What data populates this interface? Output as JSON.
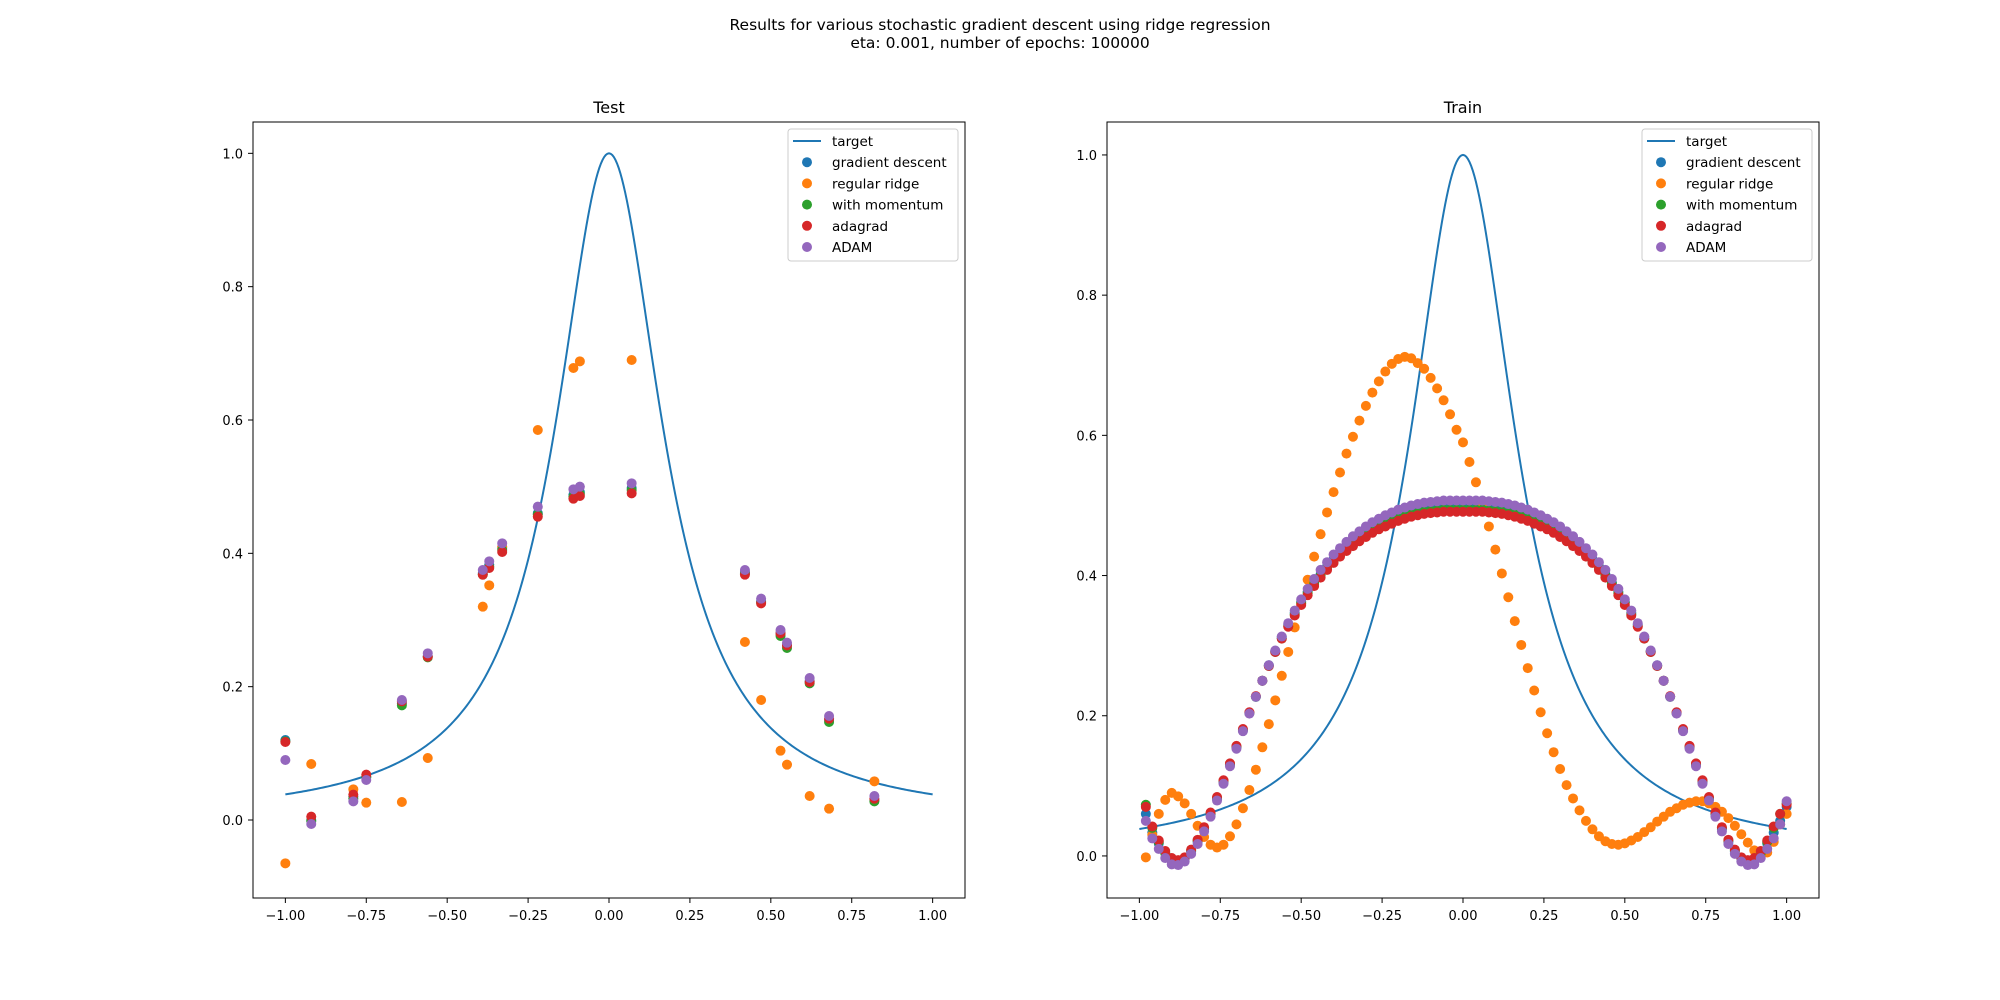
{
  "figure": {
    "suptitle_line1": "Results for various stochastic gradient descent using ridge regression",
    "suptitle_line2": "eta: 0.001, number of epochs: 100000"
  },
  "colors": {
    "target": "#1f77b4",
    "gradient descent": "#1f77b4",
    "regular ridge": "#ff7f0e",
    "with momentum": "#2ca02c",
    "adagrad": "#d62728",
    "ADAM": "#9467bd"
  },
  "chart_data": [
    {
      "type": "scatter",
      "title": "Test",
      "xlabel": "",
      "ylabel": "",
      "xlim": [
        -1.1,
        1.1
      ],
      "ylim": [
        -0.117,
        1.047
      ],
      "xticks": [
        -1.0,
        -0.75,
        -0.5,
        -0.25,
        0.0,
        0.25,
        0.5,
        0.75,
        1.0
      ],
      "xtick_labels": [
        "−1.00",
        "−0.75",
        "−0.50",
        "−0.25",
        "0.00",
        "0.25",
        "0.50",
        "0.75",
        "1.00"
      ],
      "yticks": [
        0.0,
        0.2,
        0.4,
        0.6,
        0.8,
        1.0
      ],
      "ytick_labels": [
        "0.0",
        "0.2",
        "0.4",
        "0.6",
        "0.8",
        "1.0"
      ],
      "grid": false,
      "legend": "top-right",
      "legend_entries": [
        "target",
        "gradient descent",
        "regular ridge",
        "with momentum",
        "adagrad",
        "ADAM"
      ],
      "line": {
        "name": "target",
        "function": "1/(1+25x^2)",
        "x_range": [
          -1.0,
          1.0
        ]
      },
      "x": [
        -1.0,
        -0.92,
        -0.79,
        -0.75,
        -0.64,
        -0.56,
        -0.39,
        -0.37,
        -0.33,
        -0.22,
        -0.11,
        -0.09,
        0.07,
        0.42,
        0.47,
        0.53,
        0.55,
        0.62,
        0.68,
        0.82
      ],
      "series": [
        {
          "name": "gradient descent",
          "values": [
            0.12,
            0.0,
            0.035,
            0.065,
            0.175,
            0.246,
            0.37,
            0.383,
            0.408,
            0.46,
            0.488,
            0.492,
            0.498,
            0.372,
            0.328,
            0.28,
            0.262,
            0.208,
            0.15,
            0.03
          ]
        },
        {
          "name": "regular ridge",
          "values": [
            -0.065,
            0.084,
            0.046,
            0.026,
            0.027,
            0.093,
            0.32,
            0.352,
            0.41,
            0.585,
            0.678,
            0.688,
            0.69,
            0.267,
            0.18,
            0.104,
            0.083,
            0.036,
            0.017,
            0.058
          ]
        },
        {
          "name": "with momentum",
          "values": [
            0.118,
            -0.002,
            0.032,
            0.064,
            0.172,
            0.244,
            0.368,
            0.38,
            0.405,
            0.458,
            0.485,
            0.489,
            0.495,
            0.37,
            0.326,
            0.276,
            0.258,
            0.205,
            0.147,
            0.028
          ]
        },
        {
          "name": "adagrad",
          "values": [
            0.117,
            0.005,
            0.038,
            0.068,
            0.178,
            0.245,
            0.368,
            0.378,
            0.402,
            0.455,
            0.482,
            0.486,
            0.49,
            0.368,
            0.325,
            0.28,
            0.262,
            0.207,
            0.152,
            0.032
          ]
        },
        {
          "name": "ADAM",
          "values": [
            0.09,
            -0.006,
            0.028,
            0.06,
            0.18,
            0.25,
            0.375,
            0.388,
            0.415,
            0.47,
            0.496,
            0.5,
            0.505,
            0.375,
            0.332,
            0.285,
            0.266,
            0.213,
            0.156,
            0.036
          ]
        }
      ]
    },
    {
      "type": "scatter",
      "title": "Train",
      "xlabel": "",
      "ylabel": "",
      "xlim": [
        -1.1,
        1.1
      ],
      "ylim": [
        -0.06,
        1.047
      ],
      "xticks": [
        -1.0,
        -0.75,
        -0.5,
        -0.25,
        0.0,
        0.25,
        0.5,
        0.75,
        1.0
      ],
      "xtick_labels": [
        "−1.00",
        "−0.75",
        "−0.50",
        "−0.25",
        "0.00",
        "0.25",
        "0.50",
        "0.75",
        "1.00"
      ],
      "yticks": [
        0.0,
        0.2,
        0.4,
        0.6,
        0.8,
        1.0
      ],
      "ytick_labels": [
        "0.0",
        "0.2",
        "0.4",
        "0.6",
        "0.8",
        "1.0"
      ],
      "grid": false,
      "legend": "top-right",
      "legend_entries": [
        "target",
        "gradient descent",
        "regular ridge",
        "with momentum",
        "adagrad",
        "ADAM"
      ],
      "line": {
        "name": "target",
        "function": "1/(1+25x^2)",
        "x_range": [
          -1.0,
          1.0
        ]
      },
      "x": [
        -0.98,
        -0.96,
        -0.94,
        -0.92,
        -0.9,
        -0.88,
        -0.86,
        -0.84,
        -0.82,
        -0.8,
        -0.78,
        -0.76,
        -0.74,
        -0.72,
        -0.7,
        -0.68,
        -0.66,
        -0.64,
        -0.62,
        -0.6,
        -0.58,
        -0.56,
        -0.54,
        -0.52,
        -0.5,
        -0.48,
        -0.46,
        -0.44,
        -0.42,
        -0.4,
        -0.38,
        -0.36,
        -0.34,
        -0.32,
        -0.3,
        -0.28,
        -0.26,
        -0.24,
        -0.22,
        -0.2,
        -0.18,
        -0.16,
        -0.14,
        -0.12,
        -0.1,
        -0.08,
        -0.06,
        -0.04,
        -0.02,
        0.0,
        0.02,
        0.04,
        0.06,
        0.08,
        0.1,
        0.12,
        0.14,
        0.16,
        0.18,
        0.2,
        0.22,
        0.24,
        0.26,
        0.28,
        0.3,
        0.32,
        0.34,
        0.36,
        0.38,
        0.4,
        0.42,
        0.44,
        0.46,
        0.48,
        0.5,
        0.52,
        0.54,
        0.56,
        0.58,
        0.6,
        0.62,
        0.64,
        0.66,
        0.68,
        0.7,
        0.72,
        0.74,
        0.76,
        0.78,
        0.8,
        0.82,
        0.84,
        0.86,
        0.88,
        0.9,
        0.92,
        0.94,
        0.96,
        0.98,
        1.0
      ],
      "series": [
        {
          "name": "gradient descent",
          "values": [
            0.06,
            0.033,
            0.018,
            0.004,
            -0.007,
            -0.009,
            -0.004,
            0.006,
            0.02,
            0.038,
            0.059,
            0.081,
            0.105,
            0.13,
            0.155,
            0.179,
            0.204,
            0.227,
            0.25,
            0.272,
            0.292,
            0.312,
            0.33,
            0.347,
            0.363,
            0.377,
            0.39,
            0.402,
            0.413,
            0.423,
            0.432,
            0.44,
            0.447,
            0.454,
            0.46,
            0.466,
            0.471,
            0.476,
            0.48,
            0.484,
            0.487,
            0.49,
            0.492,
            0.494,
            0.495,
            0.496,
            0.497,
            0.497,
            0.497,
            0.497,
            0.497,
            0.497,
            0.497,
            0.496,
            0.495,
            0.494,
            0.492,
            0.49,
            0.487,
            0.484,
            0.48,
            0.476,
            0.471,
            0.466,
            0.46,
            0.454,
            0.447,
            0.44,
            0.432,
            0.423,
            0.413,
            0.402,
            0.39,
            0.377,
            0.363,
            0.347,
            0.33,
            0.312,
            0.292,
            0.272,
            0.25,
            0.227,
            0.204,
            0.179,
            0.155,
            0.13,
            0.105,
            0.081,
            0.059,
            0.038,
            0.02,
            0.006,
            -0.004,
            -0.009,
            -0.007,
            0.004,
            0.018,
            0.033,
            0.05,
            0.07
          ]
        },
        {
          "name": "regular ridge",
          "values": [
            -0.002,
            0.03,
            0.06,
            0.08,
            0.09,
            0.085,
            0.075,
            0.06,
            0.043,
            0.027,
            0.016,
            0.012,
            0.016,
            0.028,
            0.045,
            0.068,
            0.094,
            0.123,
            0.155,
            0.188,
            0.222,
            0.257,
            0.291,
            0.326,
            0.36,
            0.394,
            0.427,
            0.459,
            0.49,
            0.519,
            0.547,
            0.574,
            0.598,
            0.621,
            0.642,
            0.661,
            0.677,
            0.691,
            0.702,
            0.709,
            0.712,
            0.71,
            0.703,
            0.695,
            0.682,
            0.667,
            0.65,
            0.63,
            0.608,
            0.59,
            0.562,
            0.533,
            0.502,
            0.47,
            0.437,
            0.403,
            0.369,
            0.335,
            0.301,
            0.268,
            0.236,
            0.205,
            0.175,
            0.148,
            0.124,
            0.101,
            0.082,
            0.065,
            0.05,
            0.038,
            0.028,
            0.021,
            0.017,
            0.016,
            0.018,
            0.022,
            0.027,
            0.034,
            0.041,
            0.049,
            0.056,
            0.063,
            0.068,
            0.073,
            0.076,
            0.078,
            0.078,
            0.075,
            0.07,
            0.063,
            0.054,
            0.043,
            0.031,
            0.019,
            0.008,
            0.002,
            0.005,
            0.02,
            0.045,
            0.06
          ]
        },
        {
          "name": "with momentum",
          "values": [
            0.073,
            0.04,
            0.02,
            0.004,
            -0.006,
            -0.008,
            -0.003,
            0.008,
            0.022,
            0.04,
            0.061,
            0.083,
            0.107,
            0.131,
            0.156,
            0.18,
            0.204,
            0.227,
            0.25,
            0.271,
            0.291,
            0.31,
            0.328,
            0.345,
            0.361,
            0.375,
            0.388,
            0.4,
            0.411,
            0.42,
            0.429,
            0.437,
            0.444,
            0.451,
            0.457,
            0.463,
            0.468,
            0.473,
            0.477,
            0.481,
            0.484,
            0.487,
            0.489,
            0.491,
            0.492,
            0.493,
            0.494,
            0.494,
            0.494,
            0.494,
            0.494,
            0.494,
            0.494,
            0.493,
            0.492,
            0.491,
            0.489,
            0.487,
            0.484,
            0.481,
            0.477,
            0.473,
            0.468,
            0.463,
            0.457,
            0.451,
            0.444,
            0.437,
            0.429,
            0.42,
            0.411,
            0.4,
            0.388,
            0.375,
            0.361,
            0.345,
            0.328,
            0.31,
            0.291,
            0.271,
            0.25,
            0.227,
            0.204,
            0.18,
            0.156,
            0.131,
            0.107,
            0.083,
            0.061,
            0.04,
            0.022,
            0.008,
            -0.003,
            -0.008,
            -0.006,
            0.004,
            0.02,
            0.04,
            0.06,
            0.075
          ]
        },
        {
          "name": "adagrad",
          "values": [
            0.07,
            0.042,
            0.022,
            0.007,
            -0.003,
            -0.006,
            -0.002,
            0.009,
            0.023,
            0.041,
            0.062,
            0.084,
            0.108,
            0.132,
            0.157,
            0.181,
            0.205,
            0.228,
            0.25,
            0.271,
            0.291,
            0.31,
            0.327,
            0.343,
            0.358,
            0.372,
            0.385,
            0.397,
            0.408,
            0.418,
            0.427,
            0.435,
            0.442,
            0.449,
            0.455,
            0.461,
            0.466,
            0.47,
            0.474,
            0.478,
            0.481,
            0.484,
            0.486,
            0.488,
            0.489,
            0.49,
            0.491,
            0.491,
            0.491,
            0.491,
            0.491,
            0.491,
            0.491,
            0.49,
            0.489,
            0.488,
            0.486,
            0.484,
            0.481,
            0.478,
            0.474,
            0.47,
            0.466,
            0.461,
            0.455,
            0.449,
            0.442,
            0.435,
            0.427,
            0.418,
            0.408,
            0.397,
            0.385,
            0.372,
            0.358,
            0.343,
            0.327,
            0.31,
            0.291,
            0.271,
            0.25,
            0.228,
            0.205,
            0.181,
            0.157,
            0.132,
            0.108,
            0.084,
            0.062,
            0.041,
            0.023,
            0.009,
            -0.002,
            -0.006,
            -0.003,
            0.007,
            0.022,
            0.042,
            0.06,
            0.073
          ]
        },
        {
          "name": "ADAM",
          "values": [
            0.05,
            0.025,
            0.01,
            -0.003,
            -0.012,
            -0.013,
            -0.008,
            0.003,
            0.017,
            0.035,
            0.056,
            0.079,
            0.103,
            0.128,
            0.153,
            0.178,
            0.203,
            0.227,
            0.25,
            0.272,
            0.293,
            0.313,
            0.332,
            0.35,
            0.366,
            0.381,
            0.395,
            0.408,
            0.419,
            0.43,
            0.439,
            0.448,
            0.456,
            0.463,
            0.47,
            0.476,
            0.481,
            0.486,
            0.49,
            0.494,
            0.497,
            0.5,
            0.502,
            0.504,
            0.505,
            0.506,
            0.507,
            0.507,
            0.507,
            0.507,
            0.507,
            0.507,
            0.507,
            0.506,
            0.505,
            0.504,
            0.502,
            0.5,
            0.497,
            0.494,
            0.49,
            0.486,
            0.481,
            0.476,
            0.47,
            0.463,
            0.456,
            0.448,
            0.439,
            0.43,
            0.419,
            0.408,
            0.395,
            0.381,
            0.366,
            0.35,
            0.332,
            0.313,
            0.293,
            0.272,
            0.25,
            0.227,
            0.203,
            0.178,
            0.153,
            0.128,
            0.103,
            0.079,
            0.056,
            0.035,
            0.017,
            0.003,
            -0.008,
            -0.013,
            -0.012,
            -0.003,
            0.01,
            0.025,
            0.045,
            0.078
          ]
        }
      ]
    }
  ]
}
